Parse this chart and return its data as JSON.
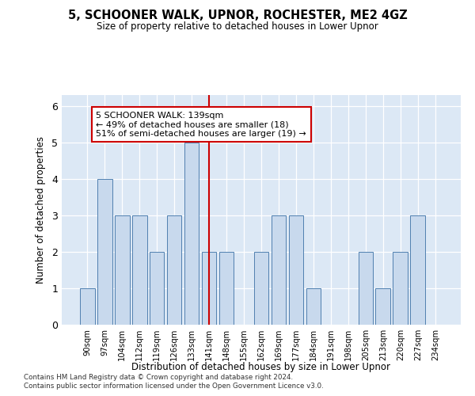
{
  "title": "5, SCHOONER WALK, UPNOR, ROCHESTER, ME2 4GZ",
  "subtitle": "Size of property relative to detached houses in Lower Upnor",
  "xlabel": "Distribution of detached houses by size in Lower Upnor",
  "ylabel": "Number of detached properties",
  "categories": [
    "90sqm",
    "97sqm",
    "104sqm",
    "112sqm",
    "119sqm",
    "126sqm",
    "133sqm",
    "141sqm",
    "148sqm",
    "155sqm",
    "162sqm",
    "169sqm",
    "177sqm",
    "184sqm",
    "191sqm",
    "198sqm",
    "205sqm",
    "213sqm",
    "220sqm",
    "227sqm",
    "234sqm"
  ],
  "values": [
    1,
    4,
    3,
    3,
    2,
    3,
    5,
    2,
    2,
    0,
    2,
    3,
    3,
    1,
    0,
    0,
    2,
    1,
    2,
    3,
    0
  ],
  "highlight_index": 7,
  "bar_color": "#c8d9ed",
  "bar_edge_color": "#5080b0",
  "highlight_line_color": "#cc0000",
  "ylim": [
    0,
    6.3
  ],
  "yticks": [
    0,
    1,
    2,
    3,
    4,
    5,
    6
  ],
  "annotation_text": "5 SCHOONER WALK: 139sqm\n← 49% of detached houses are smaller (18)\n51% of semi-detached houses are larger (19) →",
  "footer_line1": "Contains HM Land Registry data © Crown copyright and database right 2024.",
  "footer_line2": "Contains public sector information licensed under the Open Government Licence v3.0.",
  "bg_color": "#ffffff",
  "plot_bg_color": "#dce8f5"
}
